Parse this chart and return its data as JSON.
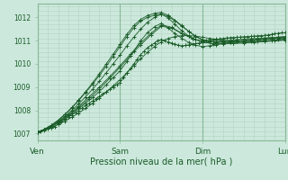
{
  "xlabel": "Pression niveau de la mer( hPa )",
  "bg_color": "#cce8dc",
  "grid_minor_color": "#b0d4c0",
  "grid_major_color": "#88b898",
  "line_color": "#1a5c28",
  "xlim": [
    0,
    72
  ],
  "ylim": [
    1006.7,
    1012.6
  ],
  "yticks": [
    1007,
    1008,
    1009,
    1010,
    1011,
    1012
  ],
  "xtick_positions": [
    0,
    24,
    48,
    72
  ],
  "xtick_labels": [
    "Ven",
    "Sam",
    "Dim",
    "Lun"
  ],
  "series": [
    [
      0,
      1007.05,
      1,
      1007.1,
      2,
      1007.15,
      3,
      1007.2,
      4,
      1007.25,
      5,
      1007.3,
      6,
      1007.4,
      7,
      1007.5,
      8,
      1007.6,
      9,
      1007.7,
      10,
      1007.8,
      11,
      1007.9,
      12,
      1008.0,
      13,
      1008.1,
      14,
      1008.2,
      15,
      1008.3,
      16,
      1008.4,
      17,
      1008.5,
      18,
      1008.6,
      19,
      1008.7,
      20,
      1008.8,
      21,
      1008.9,
      22,
      1009.0,
      23,
      1009.1,
      24,
      1009.2,
      25,
      1009.4,
      26,
      1009.6,
      27,
      1009.8,
      28,
      1010.0,
      29,
      1010.2,
      30,
      1010.4,
      31,
      1010.55,
      32,
      1010.7,
      33,
      1010.8,
      34,
      1010.9,
      35,
      1011.0,
      36,
      1011.05,
      37,
      1011.0,
      38,
      1010.95,
      39,
      1010.9,
      40,
      1010.85,
      41,
      1010.8,
      42,
      1010.78,
      43,
      1010.8,
      44,
      1010.82,
      45,
      1010.85,
      46,
      1010.88,
      47,
      1010.9,
      48,
      1010.95,
      49,
      1011.0,
      50,
      1011.02,
      51,
      1011.05,
      52,
      1011.07,
      53,
      1011.08,
      54,
      1011.1,
      55,
      1011.12,
      56,
      1011.13,
      57,
      1011.14,
      58,
      1011.15,
      59,
      1011.16,
      60,
      1011.17,
      61,
      1011.18,
      62,
      1011.19,
      63,
      1011.2,
      64,
      1011.21,
      65,
      1011.22,
      66,
      1011.23,
      67,
      1011.25,
      68,
      1011.27,
      69,
      1011.3,
      70,
      1011.32,
      71,
      1011.34,
      72,
      1011.35
    ],
    [
      0,
      1007.05,
      2,
      1007.15,
      4,
      1007.28,
      6,
      1007.45,
      8,
      1007.65,
      10,
      1007.85,
      12,
      1008.08,
      14,
      1008.3,
      16,
      1008.55,
      18,
      1008.8,
      20,
      1009.1,
      22,
      1009.4,
      24,
      1009.7,
      26,
      1010.1,
      28,
      1010.55,
      30,
      1011.0,
      32,
      1011.35,
      34,
      1011.6,
      36,
      1011.75,
      38,
      1011.55,
      40,
      1011.3,
      42,
      1011.1,
      44,
      1010.92,
      46,
      1010.8,
      48,
      1010.75,
      50,
      1010.78,
      52,
      1010.82,
      54,
      1010.88,
      56,
      1010.93,
      58,
      1010.97,
      60,
      1011.0,
      62,
      1011.03,
      64,
      1011.05,
      66,
      1011.07,
      68,
      1011.1,
      70,
      1011.12,
      72,
      1011.13
    ],
    [
      0,
      1007.05,
      2,
      1007.17,
      4,
      1007.32,
      6,
      1007.52,
      8,
      1007.75,
      10,
      1008.0,
      12,
      1008.28,
      14,
      1008.58,
      16,
      1008.9,
      18,
      1009.25,
      20,
      1009.62,
      22,
      1010.0,
      24,
      1010.38,
      26,
      1010.78,
      28,
      1011.15,
      30,
      1011.5,
      32,
      1011.8,
      34,
      1012.0,
      36,
      1012.15,
      38,
      1011.98,
      40,
      1011.7,
      42,
      1011.42,
      44,
      1011.2,
      46,
      1011.05,
      48,
      1010.98,
      50,
      1010.96,
      52,
      1010.97,
      54,
      1010.99,
      56,
      1011.02,
      58,
      1011.05,
      60,
      1011.07,
      62,
      1011.09,
      64,
      1011.1,
      66,
      1011.12,
      68,
      1011.14,
      70,
      1011.16,
      72,
      1011.18
    ],
    [
      0,
      1007.05,
      2,
      1007.18,
      4,
      1007.35,
      6,
      1007.56,
      8,
      1007.82,
      10,
      1008.1,
      12,
      1008.42,
      14,
      1008.76,
      16,
      1009.12,
      18,
      1009.5,
      20,
      1009.9,
      22,
      1010.32,
      24,
      1010.75,
      26,
      1011.18,
      28,
      1011.55,
      30,
      1011.85,
      32,
      1012.0,
      34,
      1012.1,
      36,
      1012.15,
      38,
      1012.05,
      40,
      1011.85,
      42,
      1011.62,
      44,
      1011.4,
      46,
      1011.2,
      48,
      1011.05,
      50,
      1010.98,
      52,
      1010.95,
      54,
      1010.96,
      56,
      1010.98,
      58,
      1011.0,
      60,
      1011.02,
      62,
      1011.04,
      64,
      1011.06,
      66,
      1011.08,
      68,
      1011.1,
      70,
      1011.13,
      72,
      1011.15
    ],
    [
      0,
      1007.05,
      2,
      1007.18,
      4,
      1007.35,
      6,
      1007.57,
      8,
      1007.83,
      10,
      1008.12,
      12,
      1008.45,
      14,
      1008.8,
      16,
      1009.18,
      18,
      1009.58,
      20,
      1010.0,
      22,
      1010.42,
      24,
      1010.85,
      26,
      1011.28,
      28,
      1011.65,
      30,
      1011.92,
      32,
      1012.08,
      34,
      1012.18,
      36,
      1012.22,
      38,
      1012.1,
      40,
      1011.88,
      42,
      1011.65,
      44,
      1011.4,
      46,
      1011.18,
      48,
      1011.02,
      50,
      1010.96,
      52,
      1010.93,
      54,
      1010.93,
      56,
      1010.95,
      58,
      1010.97,
      60,
      1010.99,
      62,
      1011.01,
      64,
      1011.03,
      66,
      1011.05,
      68,
      1011.08,
      70,
      1011.1,
      72,
      1011.12
    ],
    [
      0,
      1007.05,
      3,
      1007.22,
      6,
      1007.48,
      9,
      1007.78,
      12,
      1008.12,
      15,
      1008.5,
      18,
      1008.92,
      21,
      1009.38,
      24,
      1009.85,
      27,
      1010.35,
      30,
      1010.82,
      33,
      1011.25,
      36,
      1011.62,
      39,
      1011.55,
      42,
      1011.3,
      45,
      1011.1,
      48,
      1010.95,
      51,
      1010.88,
      54,
      1010.88,
      57,
      1010.9,
      60,
      1010.93,
      63,
      1010.96,
      66,
      1010.99,
      69,
      1011.02,
      72,
      1011.05
    ],
    [
      0,
      1007.05,
      3,
      1007.23,
      6,
      1007.5,
      9,
      1007.82,
      12,
      1008.18,
      15,
      1008.58,
      18,
      1009.0,
      21,
      1009.45,
      24,
      1009.92,
      27,
      1010.42,
      30,
      1010.9,
      33,
      1011.32,
      36,
      1011.68,
      39,
      1011.58,
      42,
      1011.32,
      45,
      1011.1,
      48,
      1010.94,
      51,
      1010.87,
      54,
      1010.86,
      57,
      1010.88,
      60,
      1010.9,
      63,
      1010.93,
      66,
      1010.96,
      69,
      1010.99,
      72,
      1011.02
    ],
    [
      0,
      1007.05,
      2,
      1007.14,
      4,
      1007.25,
      6,
      1007.38,
      8,
      1007.53,
      10,
      1007.7,
      12,
      1007.88,
      14,
      1008.08,
      16,
      1008.3,
      18,
      1008.53,
      20,
      1008.78,
      22,
      1009.05,
      24,
      1009.32,
      26,
      1009.62,
      28,
      1009.92,
      30,
      1010.22,
      32,
      1010.5,
      34,
      1010.75,
      36,
      1010.95,
      38,
      1011.1,
      40,
      1011.18,
      42,
      1011.22,
      44,
      1011.22,
      46,
      1011.2,
      48,
      1011.15,
      50,
      1011.1,
      52,
      1011.06,
      54,
      1011.02,
      56,
      1010.99,
      58,
      1010.97,
      60,
      1010.96,
      62,
      1010.96,
      64,
      1010.97,
      66,
      1010.99,
      68,
      1011.01,
      70,
      1011.04,
      72,
      1011.07
    ]
  ]
}
